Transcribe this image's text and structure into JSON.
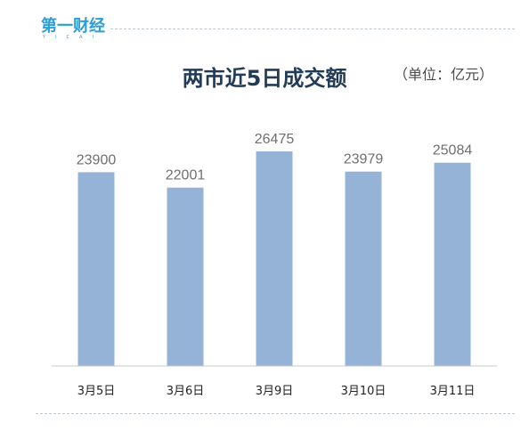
{
  "header": {
    "logo_text": "第一财经",
    "logo_subtext": "YICAI"
  },
  "chart_data": {
    "type": "bar",
    "title": "两市近5日成交额",
    "unit_label": "（单位：亿元）",
    "categories": [
      "3月5日",
      "3月6日",
      "3月9日",
      "3月10日",
      "3月11日"
    ],
    "values": [
      23900,
      22001,
      26475,
      23979,
      25084
    ],
    "bar_color": "#95b3d7",
    "ylim": [
      0,
      28000
    ],
    "grid": false,
    "legend": "none"
  }
}
